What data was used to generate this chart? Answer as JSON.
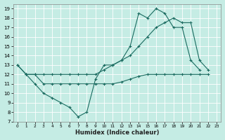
{
  "xlabel": "Humidex (Indice chaleur)",
  "bg_color": "#c5ece4",
  "grid_color": "#ffffff",
  "line_color": "#1a6b60",
  "xlim": [
    -0.5,
    23.5
  ],
  "ylim": [
    7,
    19.5
  ],
  "xticks": [
    0,
    1,
    2,
    3,
    4,
    5,
    6,
    7,
    8,
    9,
    10,
    11,
    12,
    13,
    14,
    15,
    16,
    17,
    18,
    19,
    20,
    21,
    22,
    23
  ],
  "yticks": [
    7,
    8,
    9,
    10,
    11,
    12,
    13,
    14,
    15,
    16,
    17,
    18,
    19
  ],
  "curve1_x": [
    0,
    1,
    2,
    3,
    4,
    5,
    6,
    7,
    8,
    9,
    10,
    11,
    12,
    13,
    14,
    15,
    16,
    17,
    18,
    19,
    20,
    21
  ],
  "curve1_y": [
    13,
    12,
    11,
    10,
    9.5,
    9,
    8.5,
    7.5,
    8,
    11.5,
    13,
    13,
    13.5,
    15,
    18.5,
    18,
    19,
    18.5,
    17,
    17,
    13.5,
    12.5
  ],
  "curve2_x": [
    0,
    1,
    2,
    3,
    4,
    5,
    6,
    7,
    8,
    9,
    10,
    11,
    12,
    13,
    14,
    15,
    16,
    17,
    18,
    19,
    20,
    21,
    22
  ],
  "curve2_y": [
    13,
    12,
    12,
    12,
    12,
    12,
    12,
    12,
    12,
    12,
    12.5,
    13,
    13.5,
    14,
    15,
    16,
    17,
    17.5,
    18,
    17.5,
    17.5,
    13.5,
    12.5
  ],
  "curve3_x": [
    1,
    2,
    3,
    4,
    5,
    6,
    7,
    8,
    9,
    10,
    11,
    12,
    13,
    14,
    15,
    16,
    17,
    18,
    19,
    20,
    21,
    22
  ],
  "curve3_y": [
    12,
    12,
    11,
    11,
    11,
    11,
    11,
    11,
    11,
    11,
    11,
    11.2,
    11.5,
    11.8,
    12,
    12,
    12,
    12,
    12,
    12,
    12,
    12
  ]
}
